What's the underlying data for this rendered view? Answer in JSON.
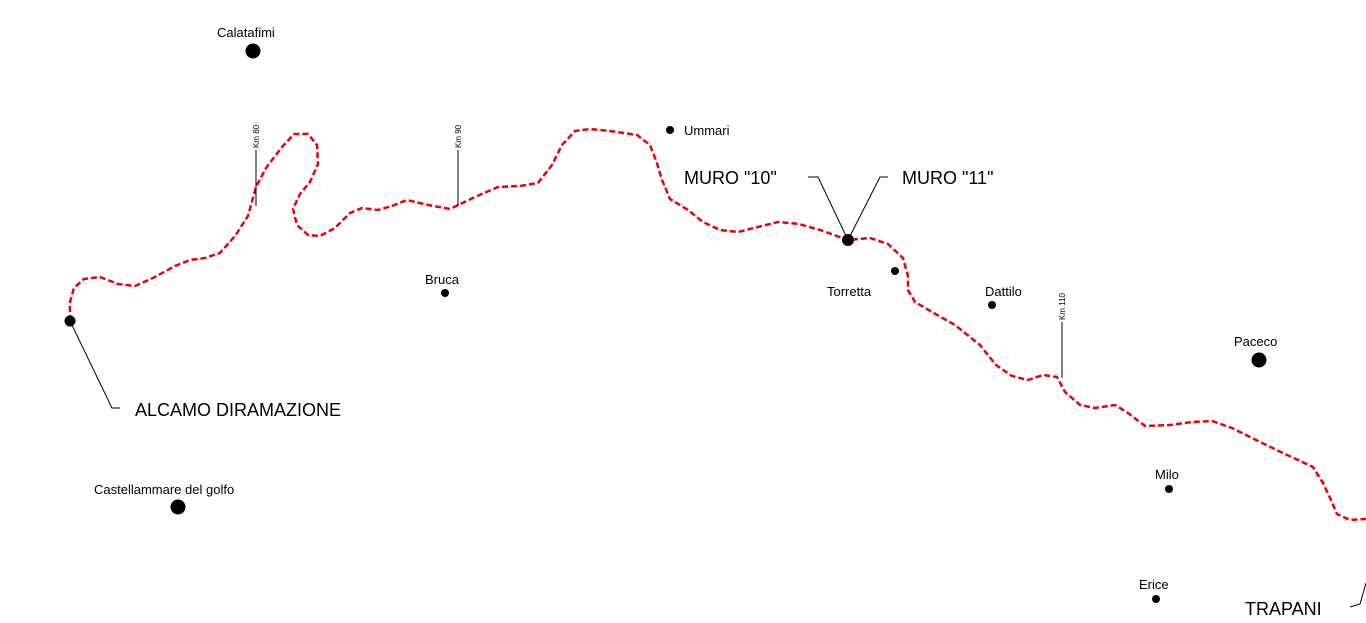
{
  "towns": [
    {
      "id": "calatafimi",
      "name": "Calatafimi"
    },
    {
      "id": "ummari",
      "name": "Ummari"
    },
    {
      "id": "bruca",
      "name": "Bruca"
    },
    {
      "id": "torretta",
      "name": "Torretta"
    },
    {
      "id": "dattilo",
      "name": "Dattilo"
    },
    {
      "id": "paceco",
      "name": "Paceco"
    },
    {
      "id": "milo",
      "name": "Milo"
    },
    {
      "id": "erice",
      "name": "Erice"
    },
    {
      "id": "castellammare",
      "name": "Castellammare del golfo"
    }
  ],
  "stations": {
    "alcamo": "ALCAMO DIRAMAZIONE",
    "trapani": "TRAPANI"
  },
  "walls": {
    "muro10": "MURO \"10\"",
    "muro11": "MURO \"11\""
  },
  "km_markers": {
    "km80": "Km 80",
    "km90": "Km 90",
    "km110": "Km 110"
  },
  "colors": {
    "railway": "#e8000f",
    "ink": "#000000",
    "background": "#ffffff"
  }
}
